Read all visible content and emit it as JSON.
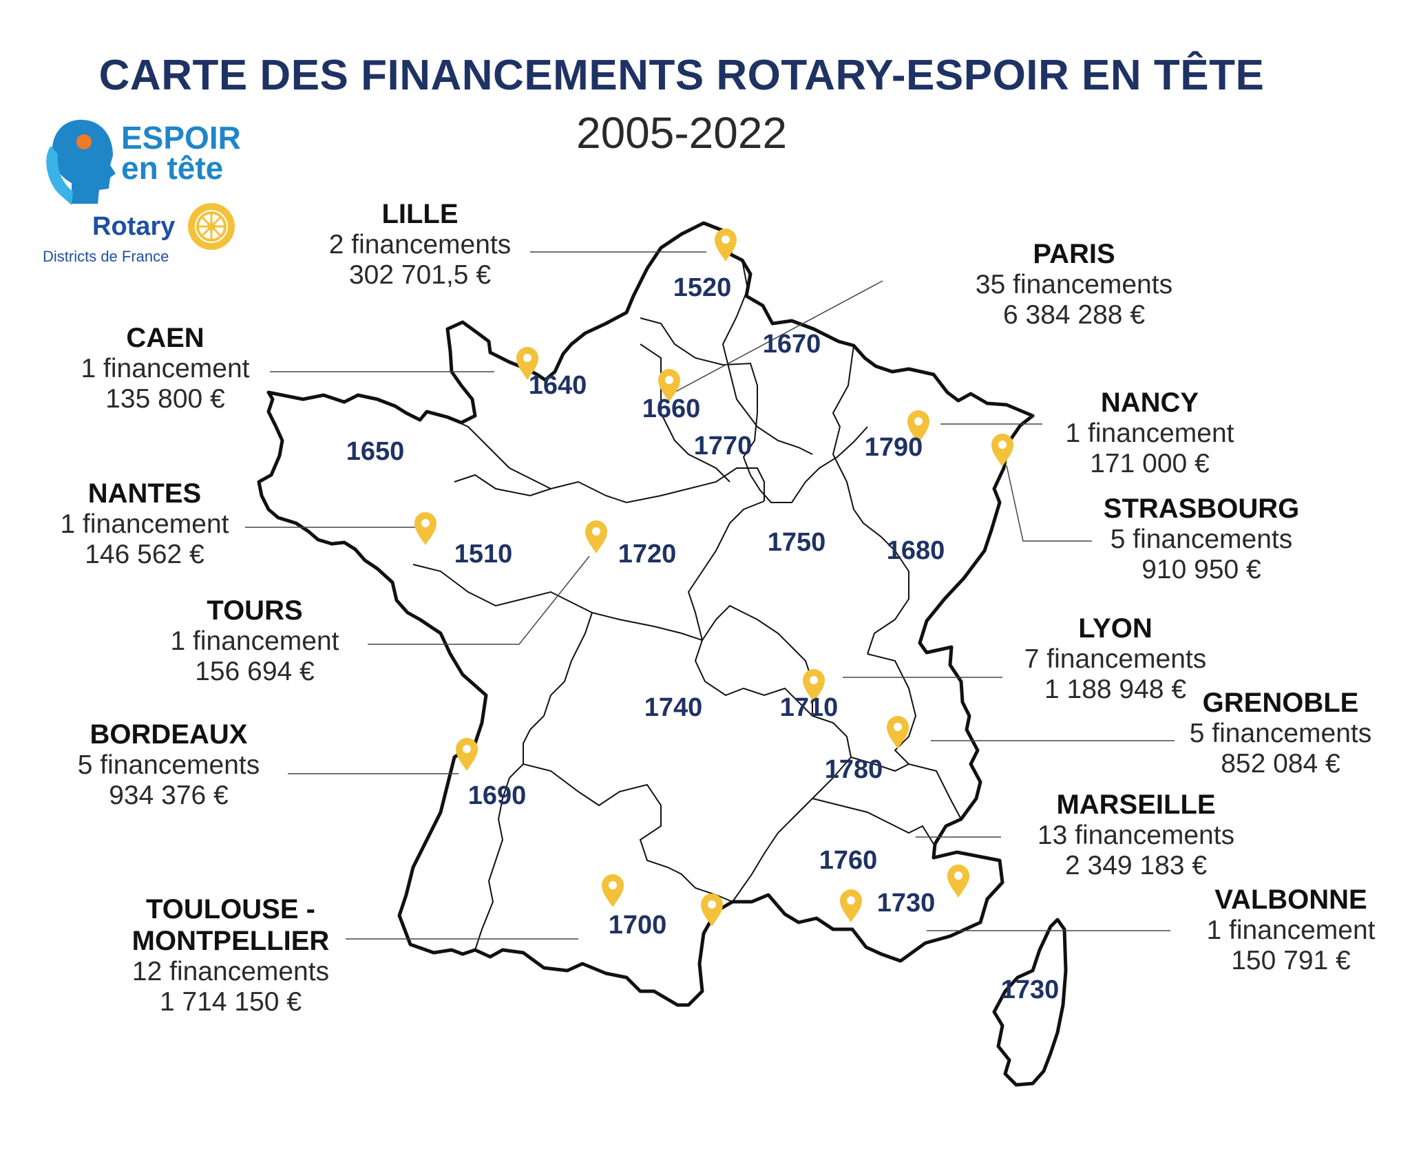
{
  "title": "CARTE DES FINANCEMENTS ROTARY-ESPOIR EN TÊTE",
  "subtitle": "2005-2022",
  "logo": {
    "espoir_line1": "ESPOIR",
    "espoir_line2": "en tête",
    "rotary": "Rotary",
    "rotary_sub": "Districts de France"
  },
  "colors": {
    "title": "#1f3264",
    "district_label": "#1f3264",
    "pin": "#f3c13a",
    "border": "#111111"
  },
  "districts": [
    "1520",
    "1670",
    "1640",
    "1660",
    "1650",
    "1770",
    "1790",
    "1510",
    "1720",
    "1750",
    "1680",
    "1740",
    "1710",
    "1780",
    "1690",
    "1760",
    "1700",
    "1730",
    "1730"
  ],
  "cities": [
    {
      "name": "LILLE",
      "count": "2 financements",
      "amount": "302 701,5 €"
    },
    {
      "name": "PARIS",
      "count": "35 financements",
      "amount": "6 384 288 €"
    },
    {
      "name": "CAEN",
      "count": "1 financement",
      "amount": "135 800 €"
    },
    {
      "name": "NANCY",
      "count": "1 financement",
      "amount": "171 000 €"
    },
    {
      "name": "NANTES",
      "count": "1 financement",
      "amount": "146 562 €"
    },
    {
      "name": "STRASBOURG",
      "count": "5 financements",
      "amount": "910 950 €"
    },
    {
      "name": "TOURS",
      "count": "1 financement",
      "amount": "156 694 €"
    },
    {
      "name": "LYON",
      "count": "7 financements",
      "amount": "1 188 948 €"
    },
    {
      "name": "GRENOBLE",
      "count": "5 financements",
      "amount": "852 084 €"
    },
    {
      "name": "BORDEAUX",
      "count": "5 financements",
      "amount": "934 376 €"
    },
    {
      "name": "MARSEILLE",
      "count": "13 financements",
      "amount": "2 349 183 €"
    },
    {
      "name": "TOULOUSE -\nMONTPELLIER",
      "count": "12 financements",
      "amount": "1 714 150 €"
    },
    {
      "name": "VALBONNE",
      "count": "1 financement",
      "amount": "150 791 €"
    }
  ]
}
